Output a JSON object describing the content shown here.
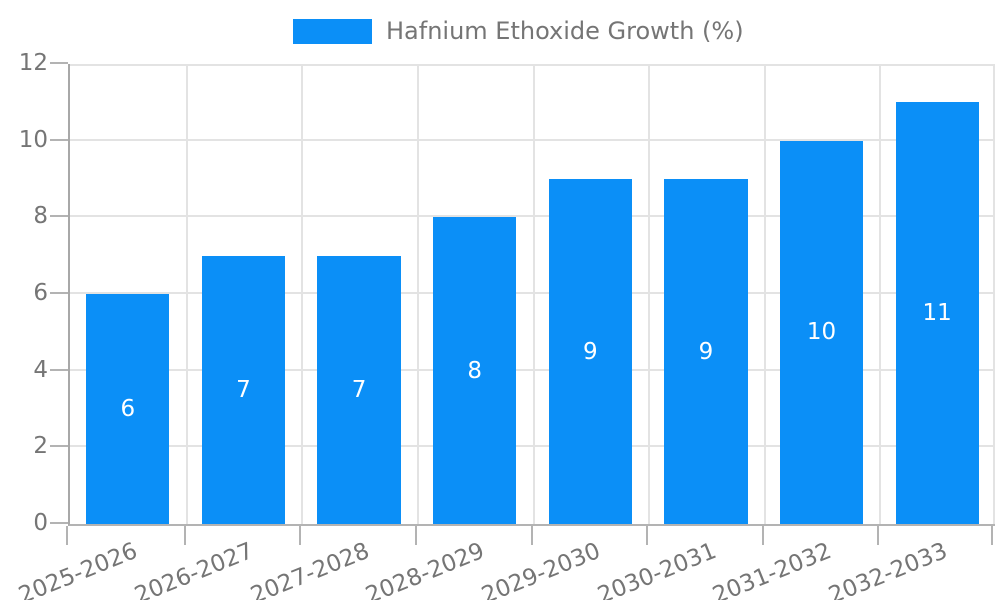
{
  "legend": {
    "label": "Hafnium Ethoxide Growth (%)"
  },
  "colors": {
    "bar": "#0b8ff7",
    "grid": "#e3e3e3",
    "axis": "#a8a8a8",
    "tick": "#b3b3b3",
    "axis_text": "#757575",
    "value_label_text": "#ffffff",
    "background": "#ffffff"
  },
  "chart_data": {
    "type": "bar",
    "title": "",
    "xlabel": "",
    "ylabel": "",
    "categories": [
      "2025-2026",
      "2026-2027",
      "2027-2028",
      "2028-2029",
      "2029-2030",
      "2030-2031",
      "2031-2032",
      "2032-2033"
    ],
    "series": [
      {
        "name": "Hafnium Ethoxide Growth (%)",
        "values": [
          6,
          7,
          7,
          8,
          9,
          9,
          10,
          11
        ]
      }
    ],
    "value_labels": [
      6,
      7,
      7,
      8,
      9,
      9,
      10,
      11
    ],
    "value_label_position": "inside-center",
    "ylim": [
      0,
      12
    ],
    "yticks": [
      0,
      2,
      4,
      6,
      8,
      10,
      12
    ],
    "grid": true,
    "legend_position": "top-center",
    "x_tick_label_rotation_deg": -22
  }
}
